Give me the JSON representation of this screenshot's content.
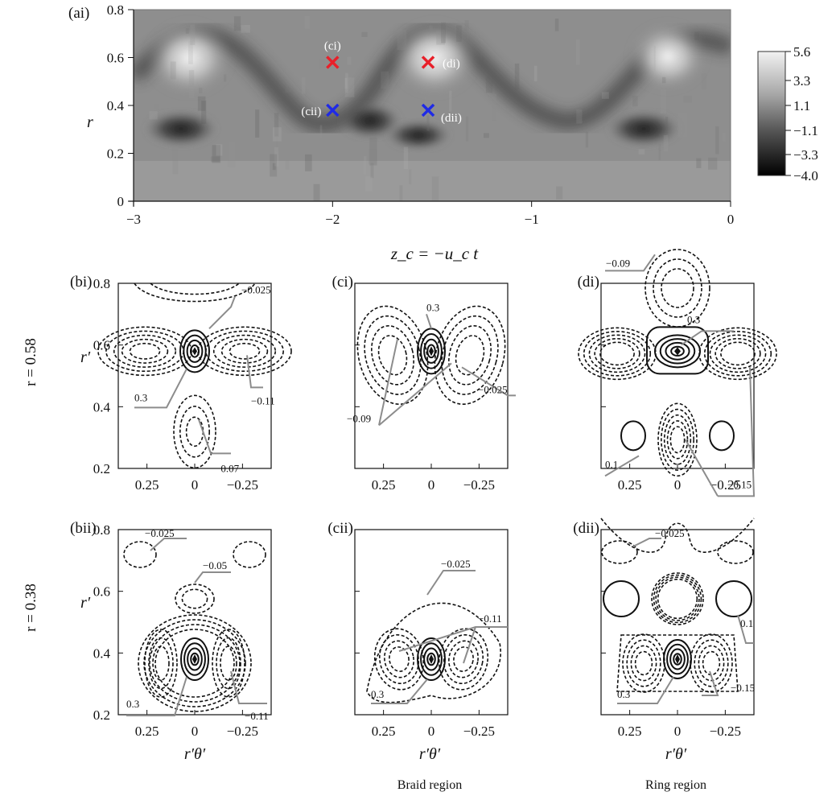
{
  "colors": {
    "cross_c": "#e8202a",
    "cross_d": "#1f2ae6",
    "leader": "#8c8c8c",
    "ink": "#111111"
  },
  "chart_data": [
    {
      "panel": "(ai)",
      "type": "heatmap",
      "xlabel": "z_c = −u_c t",
      "ylabel": "r",
      "xlim": [
        -3,
        0
      ],
      "ylim": [
        0,
        0.8
      ],
      "x_ticks": [
        "−3",
        "−2",
        "−1",
        "0"
      ],
      "y_ticks": [
        "0",
        "0.2",
        "0.4",
        "0.6",
        "0.8"
      ],
      "colorbar_ticks": [
        "5.6",
        "3.3",
        "1.1",
        "−1.1",
        "−3.3",
        "−4.0"
      ],
      "colorbar_range": [
        -4.0,
        5.6
      ],
      "markers": [
        {
          "label": "(ci)",
          "z": -2.0,
          "r": 0.58,
          "color": "red"
        },
        {
          "label": "(di)",
          "z": -1.52,
          "r": 0.58,
          "color": "red"
        },
        {
          "label": "(cii)",
          "z": -2.0,
          "r": 0.38,
          "color": "blue"
        },
        {
          "label": "(dii)",
          "z": -1.52,
          "r": 0.38,
          "color": "blue"
        }
      ]
    },
    {
      "panel": "(bi)",
      "type": "contour",
      "xlim": [
        0.4,
        -0.4
      ],
      "ylim": [
        0.2,
        0.8
      ],
      "center": [
        0,
        0.58
      ],
      "x_ticks": [
        "0.25",
        "0",
        "−0.25"
      ],
      "y_ticks": [
        "0.2",
        "0.4",
        "0.6",
        "0.8"
      ],
      "levels": [
        "−0.025",
        "0.3",
        "−0.11",
        "−0.07"
      ]
    },
    {
      "panel": "(ci)",
      "type": "contour",
      "xlim": [
        0.4,
        -0.4
      ],
      "ylim": [
        0.2,
        0.8
      ],
      "center": [
        0,
        0.58
      ],
      "x_ticks": [
        "0.25",
        "0",
        "−0.25"
      ],
      "levels": [
        "0.3",
        "−0.025",
        "−0.09"
      ]
    },
    {
      "panel": "(di)",
      "type": "contour",
      "xlim": [
        0.4,
        -0.4
      ],
      "ylim": [
        0.2,
        0.8
      ],
      "center": [
        0,
        0.58
      ],
      "x_ticks": [
        "0.25",
        "0",
        "−0.25"
      ],
      "levels": [
        "−0.09",
        "0.3",
        "0.1",
        "−0.15"
      ]
    },
    {
      "panel": "(bii)",
      "type": "contour",
      "xlim": [
        0.4,
        -0.4
      ],
      "ylim": [
        0.2,
        0.8
      ],
      "center": [
        0,
        0.38
      ],
      "x_ticks": [
        "0.25",
        "0",
        "−0.25"
      ],
      "y_ticks": [
        "0.2",
        "0.4",
        "0.6",
        "0.8"
      ],
      "xlabel": "r′θ′",
      "levels": [
        "−0.025",
        "−0.05",
        "0.3",
        "−0.11"
      ]
    },
    {
      "panel": "(cii)",
      "type": "contour",
      "xlim": [
        0.4,
        -0.4
      ],
      "ylim": [
        0.2,
        0.8
      ],
      "center": [
        0,
        0.38
      ],
      "x_ticks": [
        "0.25",
        "0",
        "−0.25"
      ],
      "xlabel": "r′θ′",
      "levels": [
        "−0.025",
        "−0.11",
        "0.3"
      ]
    },
    {
      "panel": "(dii)",
      "type": "contour",
      "xlim": [
        0.4,
        -0.4
      ],
      "ylim": [
        0.2,
        0.8
      ],
      "center": [
        0,
        0.38
      ],
      "x_ticks": [
        "0.25",
        "0",
        "−0.25"
      ],
      "xlabel": "r′θ′",
      "levels": [
        "−0.025",
        "0.1",
        "0.3",
        "−0.15"
      ]
    }
  ],
  "labels": {
    "ai": "(ai)",
    "bi": "(bi)",
    "ci": "(ci)",
    "di": "(di)",
    "bii": "(bii)",
    "cii": "(cii)",
    "dii": "(dii)",
    "r": "r",
    "zc": "z_c = −u_c t",
    "rp": "r′",
    "rptheta": "r′θ′",
    "row1": "r = 0.58",
    "row2": "r = 0.38",
    "braid": "Braid region",
    "ring": "Ring region"
  }
}
